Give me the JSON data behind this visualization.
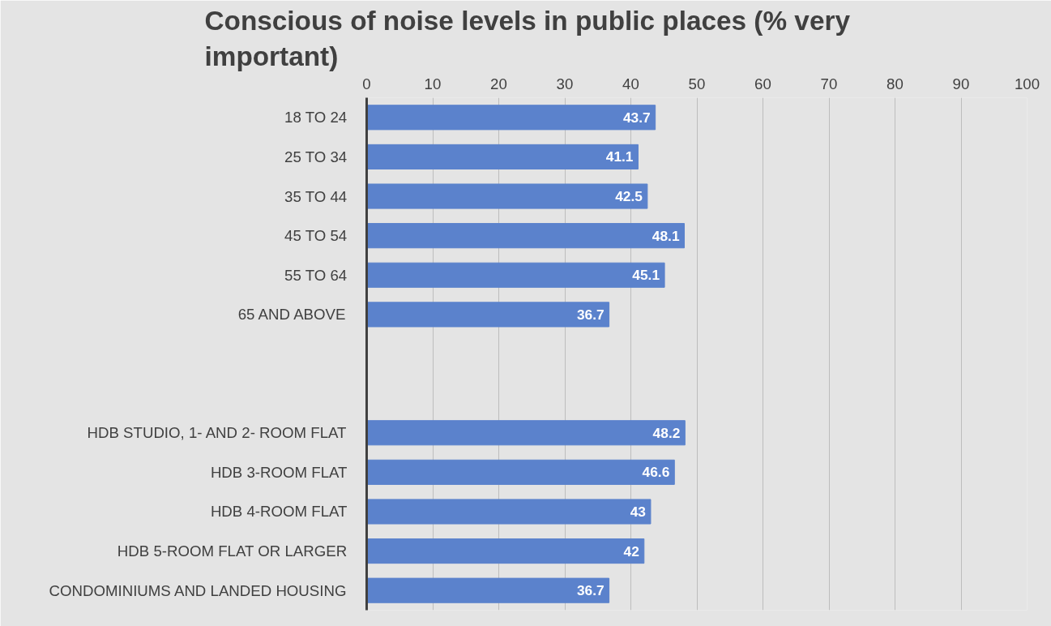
{
  "chart_data": {
    "type": "bar",
    "orientation": "horizontal",
    "title": "Conscious of noise levels in public places (% very important)",
    "categories": [
      "18 TO 24",
      "25 TO 34",
      "35 TO 44",
      "45 TO 54",
      "55 TO 64",
      "65 AND ABOVE",
      null,
      null,
      "HDB STUDIO, 1- AND 2- ROOM FLAT",
      "HDB 3-ROOM FLAT",
      "HDB 4-ROOM FLAT",
      "HDB 5-ROOM FLAT OR LARGER",
      "CONDOMINIUMS AND LANDED HOUSING"
    ],
    "values": [
      43.7,
      41.1,
      42.5,
      48.1,
      45.1,
      36.7,
      null,
      null,
      48.2,
      46.6,
      43,
      42,
      36.7
    ],
    "color": "#5b82cc",
    "xlim": [
      0,
      100
    ],
    "xticks": [
      0,
      10,
      20,
      30,
      40,
      50,
      60,
      70,
      80,
      90,
      100
    ],
    "grid": "x",
    "data_labels": true
  }
}
